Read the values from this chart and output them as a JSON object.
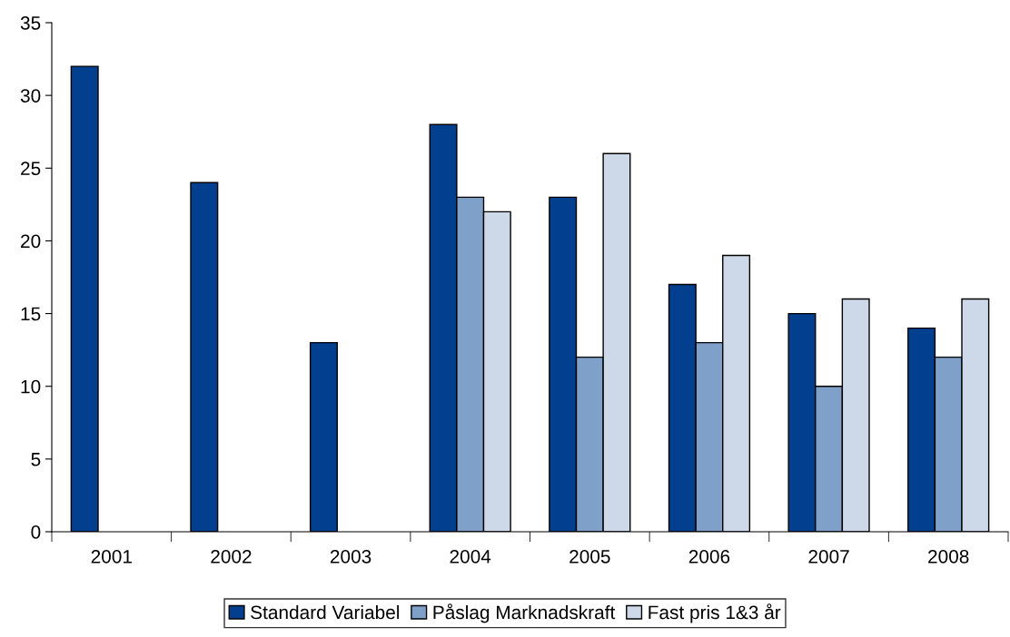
{
  "chart_data": {
    "type": "bar",
    "categories": [
      "2001",
      "2002",
      "2003",
      "2004",
      "2005",
      "2006",
      "2007",
      "2008"
    ],
    "series": [
      {
        "name": "Standard Variabel",
        "color": "#023f8f",
        "values": [
          32,
          24,
          13,
          28,
          23,
          17,
          15,
          14
        ]
      },
      {
        "name": "Påslag Marknadskraft",
        "color": "#7fa0c8",
        "values": [
          null,
          null,
          null,
          23,
          12,
          13,
          10,
          12
        ]
      },
      {
        "name": "Fast pris 1&3 år",
        "color": "#cdd9e8",
        "values": [
          null,
          null,
          null,
          22,
          26,
          19,
          16,
          16
        ]
      }
    ],
    "ylim": [
      0,
      35
    ],
    "yticks": [
      0,
      5,
      10,
      15,
      20,
      25,
      30,
      35
    ],
    "grid": false,
    "legend": "bottom"
  }
}
